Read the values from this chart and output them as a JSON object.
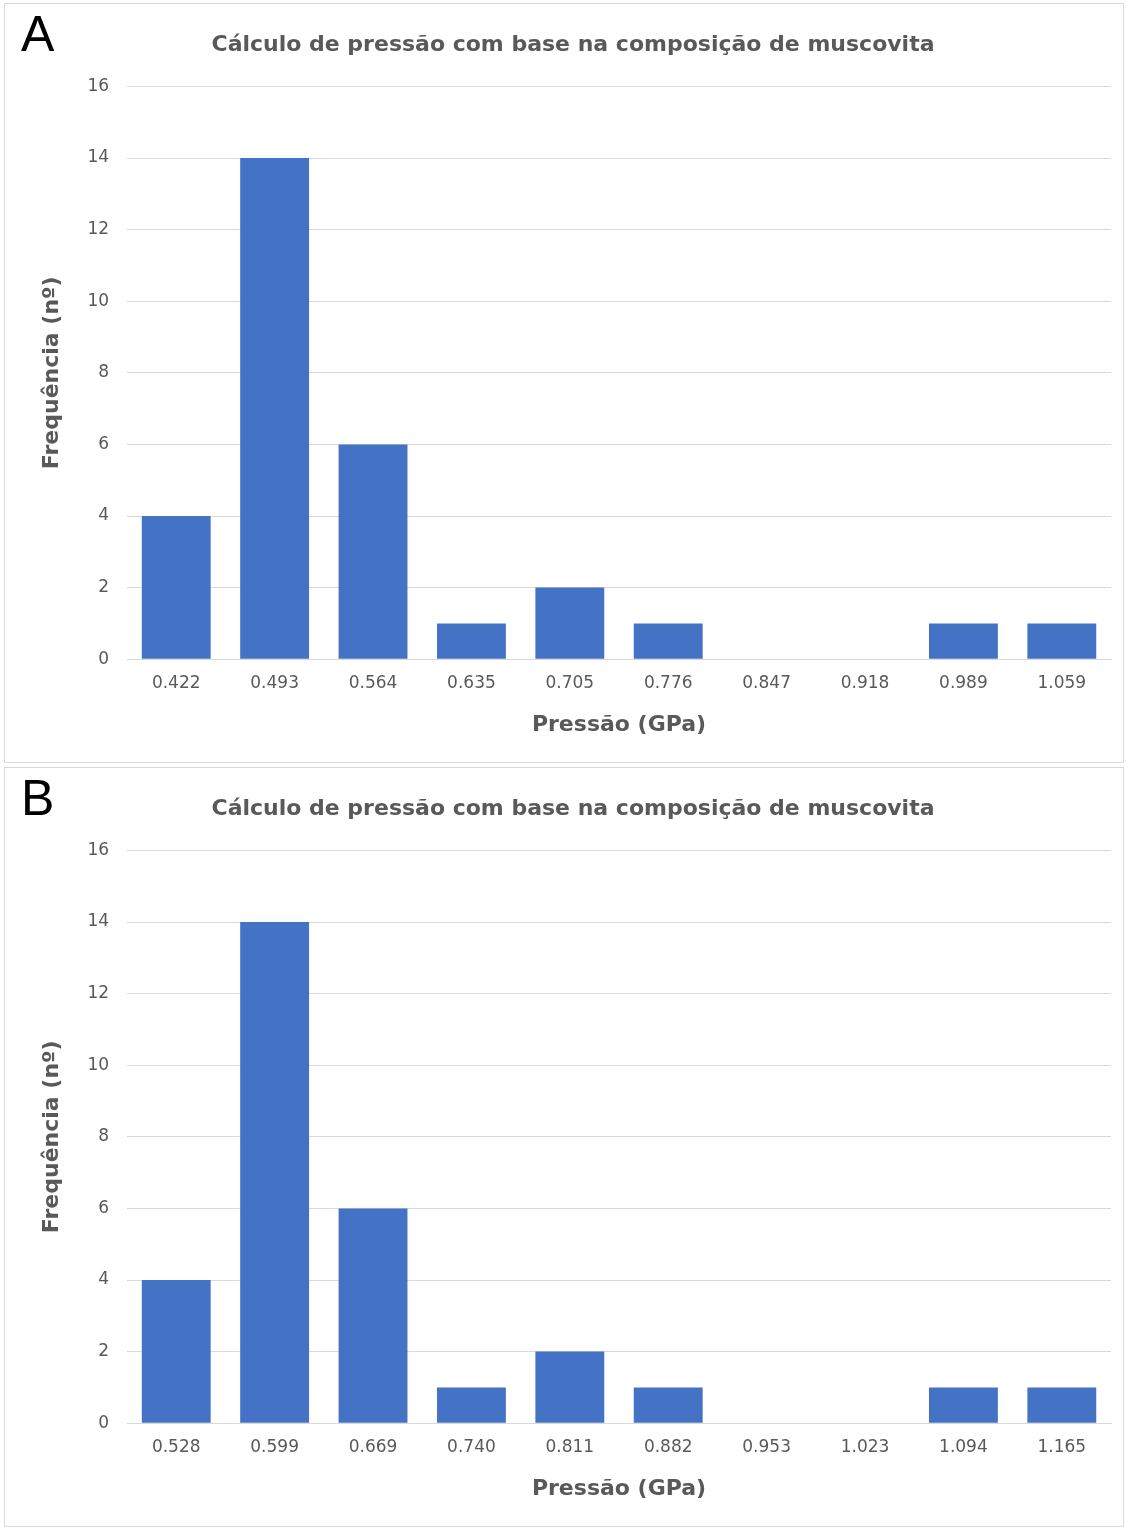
{
  "chart_data": [
    {
      "type": "bar",
      "title": "Cálculo de pressão com base na composição de muscovita",
      "xlabel": "Pressão (GPa)",
      "ylabel": "Frequência (nº)",
      "annotations": [
        "A"
      ],
      "categories": [
        "0.422",
        "0.493",
        "0.564",
        "0.635",
        "0.705",
        "0.776",
        "0.847",
        "0.918",
        "0.989",
        "1.059"
      ],
      "values": [
        4,
        14,
        6,
        1,
        2,
        1,
        0,
        0,
        1,
        1
      ],
      "color": "#4472c4",
      "ylim": [
        0,
        16
      ],
      "yticks": [
        0,
        2,
        4,
        6,
        8,
        10,
        12,
        14,
        16
      ],
      "grid": "y"
    },
    {
      "type": "bar",
      "title": "Cálculo de pressão com base na composição de muscovita",
      "xlabel": "Pressão (GPa)",
      "ylabel": "Frequência (nº)",
      "annotations": [
        "B"
      ],
      "categories": [
        "0.528",
        "0.599",
        "0.669",
        "0.740",
        "0.811",
        "0.882",
        "0.953",
        "1.023",
        "1.094",
        "1.165"
      ],
      "values": [
        4,
        14,
        6,
        1,
        2,
        1,
        0,
        0,
        1,
        1
      ],
      "color": "#4472c4",
      "ylim": [
        0,
        16
      ],
      "yticks": [
        0,
        2,
        4,
        6,
        8,
        10,
        12,
        14,
        16
      ],
      "grid": "y"
    }
  ]
}
